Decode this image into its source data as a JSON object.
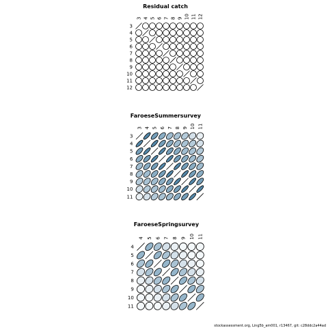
{
  "chart_data": [
    {
      "type": "ellipse-matrix",
      "title": "Residual catch",
      "color": "#2b6a94",
      "categories": [
        3,
        4,
        5,
        6,
        7,
        8,
        9,
        10,
        11,
        12
      ],
      "values": [
        [
          1,
          0,
          0,
          0,
          0,
          0,
          0,
          0,
          0,
          0
        ],
        [
          0,
          1,
          0,
          0,
          0,
          0,
          0,
          0,
          0,
          0
        ],
        [
          0,
          0,
          1,
          0,
          0,
          0,
          0,
          0,
          0,
          0
        ],
        [
          0,
          0,
          0,
          1,
          0,
          0,
          0,
          0,
          0,
          0
        ],
        [
          0,
          0,
          0,
          0,
          1,
          0,
          0,
          0,
          0,
          0
        ],
        [
          0,
          0,
          0,
          0,
          0,
          1,
          0,
          0,
          0,
          0
        ],
        [
          0,
          0,
          0,
          0,
          0,
          0,
          1,
          0,
          0,
          0
        ],
        [
          0,
          0,
          0,
          0,
          0,
          0,
          0,
          1,
          0,
          0
        ],
        [
          0,
          0,
          0,
          0,
          0,
          0,
          0,
          0,
          1,
          0
        ],
        [
          0,
          0,
          0,
          0,
          0,
          0,
          0,
          0,
          0,
          1
        ]
      ]
    },
    {
      "type": "ellipse-matrix",
      "title": "FaroeseSummersurvey",
      "color": "#2b6a94",
      "categories": [
        3,
        4,
        5,
        6,
        7,
        8,
        9,
        10,
        11
      ],
      "values": [
        [
          1,
          0.8,
          0.65,
          0.55,
          0.45,
          0.4,
          0.35,
          0.2,
          0.1
        ],
        [
          0.8,
          1,
          0.8,
          0.65,
          0.55,
          0.45,
          0.4,
          0.35,
          0.2
        ],
        [
          0.65,
          0.8,
          1,
          0.8,
          0.65,
          0.55,
          0.45,
          0.4,
          0.35
        ],
        [
          0.55,
          0.65,
          0.8,
          1,
          0.8,
          0.65,
          0.55,
          0.45,
          0.4
        ],
        [
          0.45,
          0.55,
          0.65,
          0.8,
          1,
          0.8,
          0.65,
          0.55,
          0.45
        ],
        [
          0.4,
          0.45,
          0.55,
          0.65,
          0.8,
          1,
          0.8,
          0.65,
          0.55
        ],
        [
          0.35,
          0.4,
          0.45,
          0.55,
          0.65,
          0.8,
          1,
          0.8,
          0.65
        ],
        [
          0.2,
          0.35,
          0.4,
          0.45,
          0.55,
          0.65,
          0.8,
          1,
          0.8
        ],
        [
          0.1,
          0.2,
          0.35,
          0.4,
          0.45,
          0.55,
          0.65,
          0.8,
          1
        ]
      ]
    },
    {
      "type": "ellipse-matrix",
      "title": "FaroeseSpringsurvey",
      "color": "#2b6a94",
      "categories": [
        4,
        5,
        6,
        7,
        8,
        9,
        10,
        11
      ],
      "values": [
        [
          1,
          0.5,
          0.4,
          0.2,
          0.1,
          0.05,
          0.05,
          0.05
        ],
        [
          0.5,
          1,
          0.5,
          0.4,
          0.2,
          0.1,
          0.05,
          0.05
        ],
        [
          0.4,
          0.5,
          1,
          0.5,
          0.4,
          0.2,
          0.1,
          0.05
        ],
        [
          0.2,
          0.4,
          0.5,
          1,
          0.5,
          0.4,
          0.2,
          0.1
        ],
        [
          0.1,
          0.2,
          0.4,
          0.5,
          1,
          0.5,
          0.4,
          0.2
        ],
        [
          0.05,
          0.1,
          0.2,
          0.4,
          0.5,
          1,
          0.5,
          0.4
        ],
        [
          0.05,
          0.05,
          0.1,
          0.2,
          0.4,
          0.5,
          1,
          0.5
        ],
        [
          0.05,
          0.05,
          0.05,
          0.1,
          0.2,
          0.4,
          0.5,
          1
        ]
      ]
    }
  ],
  "footer": "stockassessment.org, Ling5b_am001, r13467, git: c28ddc2a44ad"
}
